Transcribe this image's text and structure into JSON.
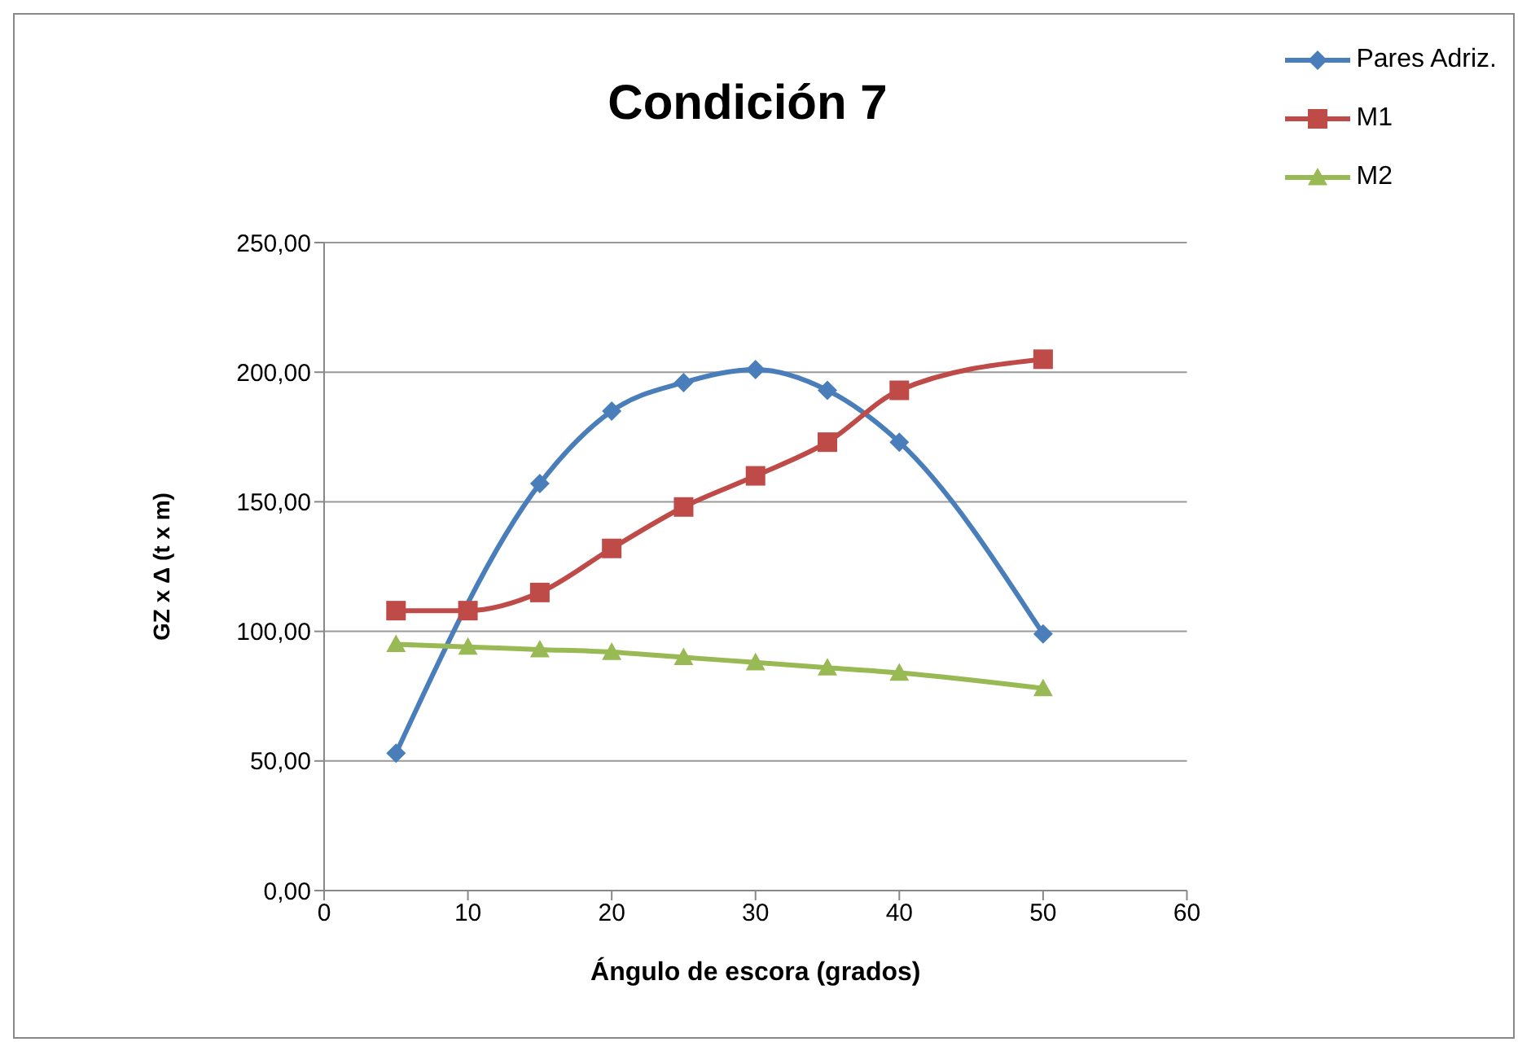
{
  "chart_data": {
    "type": "line",
    "title": "Condición 7",
    "xlabel": "Ángulo de escora (grados)",
    "ylabel": "GZ x Δ (t x m)",
    "x": [
      5,
      10,
      15,
      20,
      25,
      30,
      35,
      40,
      50
    ],
    "series": [
      {
        "name": "Pares Adriz.",
        "color": "#4a7ebb",
        "marker": "diamond",
        "values": [
          53,
          null,
          157,
          185,
          196,
          201,
          193,
          173,
          99
        ]
      },
      {
        "name": "M1",
        "color": "#be4b48",
        "marker": "square",
        "values": [
          108,
          108,
          115,
          132,
          148,
          160,
          173,
          193,
          205
        ]
      },
      {
        "name": "M2",
        "color": "#98b954",
        "marker": "triangle",
        "values": [
          95,
          94,
          93,
          92,
          90,
          88,
          86,
          84,
          78
        ]
      }
    ],
    "xlim": [
      0,
      60
    ],
    "xticks": [
      0,
      10,
      20,
      30,
      40,
      50,
      60
    ],
    "ylim": [
      0,
      250
    ],
    "yticks": [
      {
        "value": 0,
        "label": "0,00"
      },
      {
        "value": 50,
        "label": "50,00"
      },
      {
        "value": 100,
        "label": "100,00"
      },
      {
        "value": 150,
        "label": "150,00"
      },
      {
        "value": 200,
        "label": "200,00"
      },
      {
        "value": 250,
        "label": "250,00"
      }
    ],
    "grid": "y",
    "legend": "top right",
    "line_style": "solid"
  }
}
